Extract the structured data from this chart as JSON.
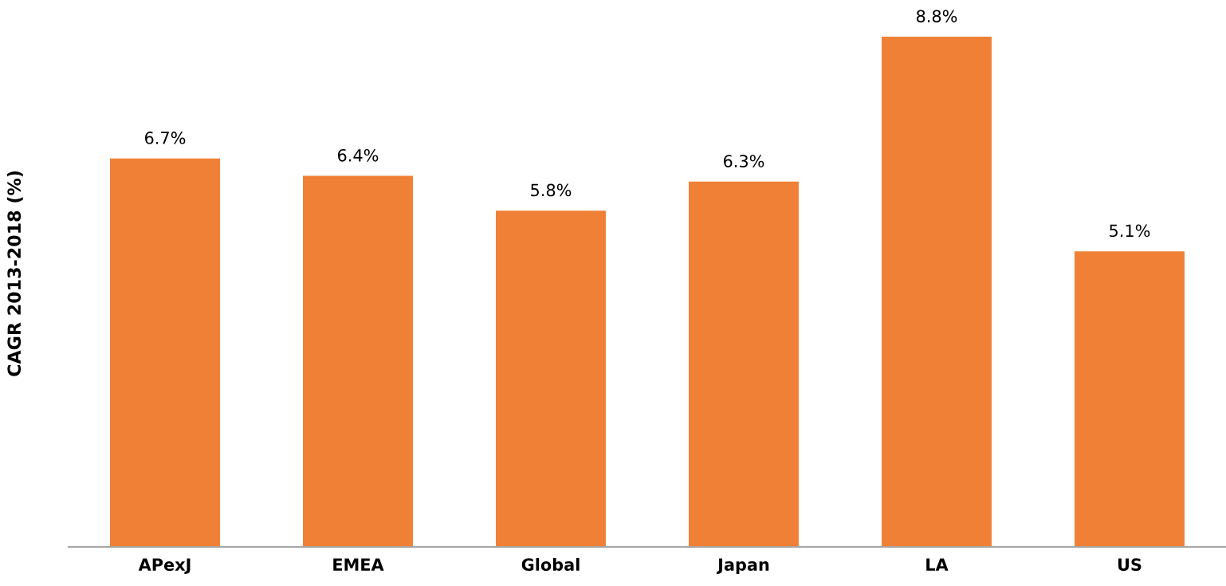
{
  "chart_data": {
    "type": "bar",
    "ylabel": "CAGR 2013-2018 (%)",
    "categories": [
      "APexJ",
      "EMEA",
      "Global",
      "Japan",
      "LA",
      "US"
    ],
    "values": [
      6.7,
      6.4,
      5.8,
      6.3,
      8.8,
      5.1
    ],
    "value_labels": [
      "6.7%",
      "6.4%",
      "5.8%",
      "6.3%",
      "8.8%",
      "5.1%"
    ],
    "color": "#f08035",
    "grid": false,
    "legend": false
  }
}
